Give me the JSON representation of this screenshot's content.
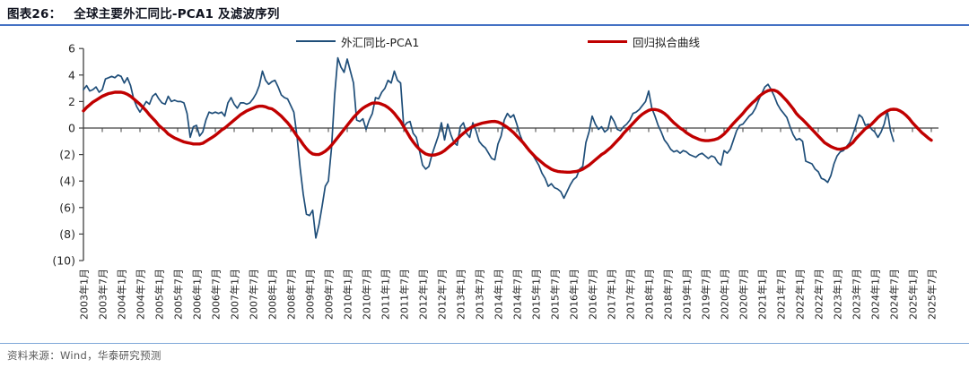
{
  "header": {
    "figure_label": "图表26：",
    "figure_title": "全球主要外汇同比-PCA1 及滤波序列"
  },
  "legend": [
    {
      "label": "外汇同比-PCA1",
      "color": "#1F4E79"
    },
    {
      "label": "回归拟合曲线",
      "color": "#C00000"
    }
  ],
  "footer": {
    "source_text": "资料来源：Wind，华泰研究预测"
  },
  "colors": {
    "series_blue": "#1F4E79",
    "series_red": "#C00000",
    "header_rule": "#4472C4",
    "footer_rule": "#7FA8D9",
    "axis": "#404040",
    "tick_text": "#262626"
  },
  "chart_data": {
    "type": "line",
    "title": "全球主要外汇同比-PCA1 及滤波序列",
    "xlabel": "",
    "ylabel": "",
    "ylim": [
      -10,
      6
    ],
    "grid": false,
    "legend_position": "top",
    "x_start": "2003-01",
    "x_end": "2025-07",
    "y_ticks": {
      "values": [
        6,
        4,
        2,
        0,
        -2,
        -4,
        -6,
        -8,
        -10
      ],
      "labels": [
        "6",
        "4",
        "2",
        "0",
        "(2)",
        "(4)",
        "(6)",
        "(8)",
        "(10)"
      ]
    },
    "x_tick_labels": [
      "2003年1月",
      "2003年7月",
      "2004年1月",
      "2004年7月",
      "2005年1月",
      "2005年7月",
      "2006年1月",
      "2006年7月",
      "2007年1月",
      "2007年7月",
      "2008年1月",
      "2008年7月",
      "2009年1月",
      "2009年7月",
      "2010年1月",
      "2010年7月",
      "2011年1月",
      "2011年7月",
      "2012年1月",
      "2012年7月",
      "2013年1月",
      "2013年7月",
      "2014年1月",
      "2014年7月",
      "2015年1月",
      "2015年7月",
      "2016年1月",
      "2016年7月",
      "2017年1月",
      "2017年7月",
      "2018年1月",
      "2018年7月",
      "2019年1月",
      "2019年7月",
      "2020年1月",
      "2020年7月",
      "2021年1月",
      "2021年7月",
      "2022年1月",
      "2022年7月",
      "2023年1月",
      "2023年7月",
      "2024年1月",
      "2024年7月",
      "2025年1月",
      "2025年7月"
    ],
    "series": [
      {
        "name": "外汇同比-PCA1",
        "color": "#1F4E79",
        "start_month": "2003-01",
        "end_month": "2024-07",
        "monthly_values": [
          2.9,
          3.2,
          2.8,
          2.9,
          3.1,
          2.7,
          2.9,
          3.7,
          3.8,
          3.9,
          3.8,
          4.0,
          3.9,
          3.4,
          3.8,
          3.2,
          2.2,
          1.6,
          1.2,
          1.6,
          2.0,
          1.8,
          2.4,
          2.6,
          2.2,
          1.9,
          1.8,
          2.4,
          2.0,
          2.1,
          2.0,
          2.0,
          1.9,
          1.1,
          -0.7,
          0.1,
          0.2,
          -0.6,
          -0.3,
          0.6,
          1.2,
          1.1,
          1.2,
          1.1,
          1.2,
          0.9,
          1.9,
          2.3,
          1.8,
          1.5,
          1.9,
          1.9,
          1.8,
          1.9,
          2.2,
          2.6,
          3.2,
          4.3,
          3.6,
          3.3,
          3.5,
          3.6,
          3.1,
          2.5,
          2.3,
          2.2,
          1.7,
          1.2,
          -0.6,
          -3.0,
          -5.0,
          -6.5,
          -6.6,
          -6.2,
          -8.3,
          -7.3,
          -5.9,
          -4.4,
          -4.0,
          -1.5,
          2.5,
          5.3,
          4.6,
          4.2,
          5.2,
          4.3,
          3.4,
          0.6,
          0.5,
          0.7,
          -0.1,
          0.6,
          1.1,
          2.3,
          2.2,
          2.7,
          3.0,
          3.6,
          3.4,
          4.3,
          3.6,
          3.4,
          0.1,
          0.4,
          0.5,
          -0.4,
          -0.7,
          -1.7,
          -2.8,
          -3.1,
          -2.9,
          -2.0,
          -1.3,
          -0.6,
          0.4,
          -0.9,
          0.3,
          -0.5,
          -1.1,
          -1.3,
          0.1,
          0.4,
          -0.4,
          -0.7,
          0.4,
          -0.2,
          -1.0,
          -1.3,
          -1.5,
          -1.9,
          -2.3,
          -2.4,
          -1.2,
          -0.6,
          0.6,
          1.1,
          0.8,
          1.0,
          0.3,
          -0.5,
          -1.1,
          -1.5,
          -1.7,
          -2.0,
          -2.4,
          -2.8,
          -3.4,
          -3.8,
          -4.4,
          -4.2,
          -4.5,
          -4.6,
          -4.8,
          -5.3,
          -4.8,
          -4.3,
          -3.9,
          -3.7,
          -3.1,
          -2.9,
          -1.1,
          -0.3,
          0.9,
          0.3,
          -0.1,
          0.1,
          -0.3,
          -0.1,
          0.9,
          0.5,
          -0.1,
          -0.2,
          0.1,
          0.3,
          0.6,
          1.1,
          1.2,
          1.4,
          1.7,
          2.0,
          2.8,
          1.5,
          0.9,
          0.2,
          -0.3,
          -0.9,
          -1.2,
          -1.6,
          -1.8,
          -1.7,
          -1.9,
          -1.7,
          -1.8,
          -2.0,
          -2.1,
          -2.2,
          -2.0,
          -1.9,
          -2.1,
          -2.3,
          -2.1,
          -2.2,
          -2.6,
          -2.8,
          -1.7,
          -1.9,
          -1.6,
          -0.9,
          -0.2,
          0.2,
          0.3,
          0.6,
          0.9,
          1.1,
          1.5,
          2.1,
          2.6,
          3.1,
          3.3,
          2.9,
          2.4,
          1.8,
          1.4,
          1.1,
          0.8,
          0.1,
          -0.5,
          -0.9,
          -0.8,
          -1.0,
          -2.5,
          -2.6,
          -2.7,
          -3.1,
          -3.3,
          -3.8,
          -3.9,
          -4.1,
          -3.6,
          -2.7,
          -2.1,
          -1.8,
          -1.7,
          -1.4,
          -1.1,
          -0.5,
          0.2,
          1.0,
          0.8,
          0.2,
          0.3,
          -0.1,
          -0.3,
          -0.7,
          -0.3,
          0.3,
          1.3,
          -0.2,
          -1.0
        ]
      },
      {
        "name": "回归拟合曲线",
        "color": "#C00000",
        "start_month": "2003-01",
        "end_month": "2025-07",
        "monthly_values": [
          1.3,
          1.55,
          1.75,
          1.95,
          2.1,
          2.25,
          2.4,
          2.5,
          2.6,
          2.65,
          2.7,
          2.7,
          2.7,
          2.65,
          2.55,
          2.4,
          2.2,
          2.0,
          1.8,
          1.55,
          1.3,
          1.0,
          0.75,
          0.5,
          0.2,
          0.0,
          -0.2,
          -0.45,
          -0.6,
          -0.75,
          -0.85,
          -0.95,
          -1.05,
          -1.1,
          -1.15,
          -1.2,
          -1.2,
          -1.2,
          -1.15,
          -1.0,
          -0.85,
          -0.7,
          -0.55,
          -0.35,
          -0.15,
          0.0,
          0.2,
          0.4,
          0.6,
          0.8,
          1.0,
          1.15,
          1.3,
          1.4,
          1.5,
          1.6,
          1.65,
          1.65,
          1.6,
          1.5,
          1.45,
          1.3,
          1.1,
          0.9,
          0.65,
          0.4,
          0.1,
          -0.25,
          -0.6,
          -0.9,
          -1.25,
          -1.55,
          -1.8,
          -1.95,
          -2.0,
          -2.0,
          -1.9,
          -1.75,
          -1.55,
          -1.3,
          -1.0,
          -0.7,
          -0.4,
          -0.1,
          0.2,
          0.5,
          0.8,
          1.05,
          1.3,
          1.5,
          1.65,
          1.78,
          1.88,
          1.9,
          1.88,
          1.8,
          1.7,
          1.55,
          1.35,
          1.1,
          0.8,
          0.5,
          0.1,
          -0.3,
          -0.7,
          -1.05,
          -1.35,
          -1.6,
          -1.8,
          -1.95,
          -2.03,
          -2.05,
          -2.03,
          -1.95,
          -1.85,
          -1.7,
          -1.5,
          -1.3,
          -1.1,
          -0.85,
          -0.6,
          -0.4,
          -0.2,
          -0.02,
          0.12,
          0.22,
          0.3,
          0.37,
          0.42,
          0.46,
          0.49,
          0.5,
          0.45,
          0.35,
          0.2,
          0.05,
          -0.15,
          -0.35,
          -0.6,
          -0.85,
          -1.1,
          -1.4,
          -1.7,
          -1.95,
          -2.2,
          -2.4,
          -2.6,
          -2.8,
          -2.95,
          -3.1,
          -3.2,
          -3.27,
          -3.3,
          -3.32,
          -3.33,
          -3.33,
          -3.3,
          -3.28,
          -3.2,
          -3.1,
          -2.95,
          -2.8,
          -2.6,
          -2.4,
          -2.2,
          -2.0,
          -1.85,
          -1.65,
          -1.45,
          -1.2,
          -0.95,
          -0.7,
          -0.4,
          -0.15,
          0.1,
          0.35,
          0.6,
          0.85,
          1.05,
          1.2,
          1.33,
          1.4,
          1.4,
          1.35,
          1.25,
          1.1,
          0.9,
          0.64,
          0.4,
          0.2,
          0.0,
          -0.15,
          -0.35,
          -0.5,
          -0.65,
          -0.75,
          -0.85,
          -0.92,
          -0.95,
          -0.95,
          -0.92,
          -0.87,
          -0.8,
          -0.65,
          -0.45,
          -0.2,
          0.08,
          0.35,
          0.6,
          0.85,
          1.1,
          1.4,
          1.65,
          1.9,
          2.1,
          2.35,
          2.55,
          2.7,
          2.82,
          2.87,
          2.85,
          2.75,
          2.55,
          2.3,
          2.05,
          1.75,
          1.45,
          1.1,
          0.85,
          0.64,
          0.4,
          0.15,
          -0.1,
          -0.35,
          -0.6,
          -0.85,
          -1.1,
          -1.25,
          -1.4,
          -1.5,
          -1.58,
          -1.6,
          -1.55,
          -1.48,
          -1.3,
          -1.1,
          -0.8,
          -0.55,
          -0.3,
          -0.05,
          0.1,
          0.3,
          0.55,
          0.8,
          1.0,
          1.15,
          1.3,
          1.4,
          1.42,
          1.4,
          1.3,
          1.15,
          0.95,
          0.7,
          0.4,
          0.15,
          -0.1,
          -0.35,
          -0.55,
          -0.75,
          -0.92
        ]
      }
    ]
  }
}
